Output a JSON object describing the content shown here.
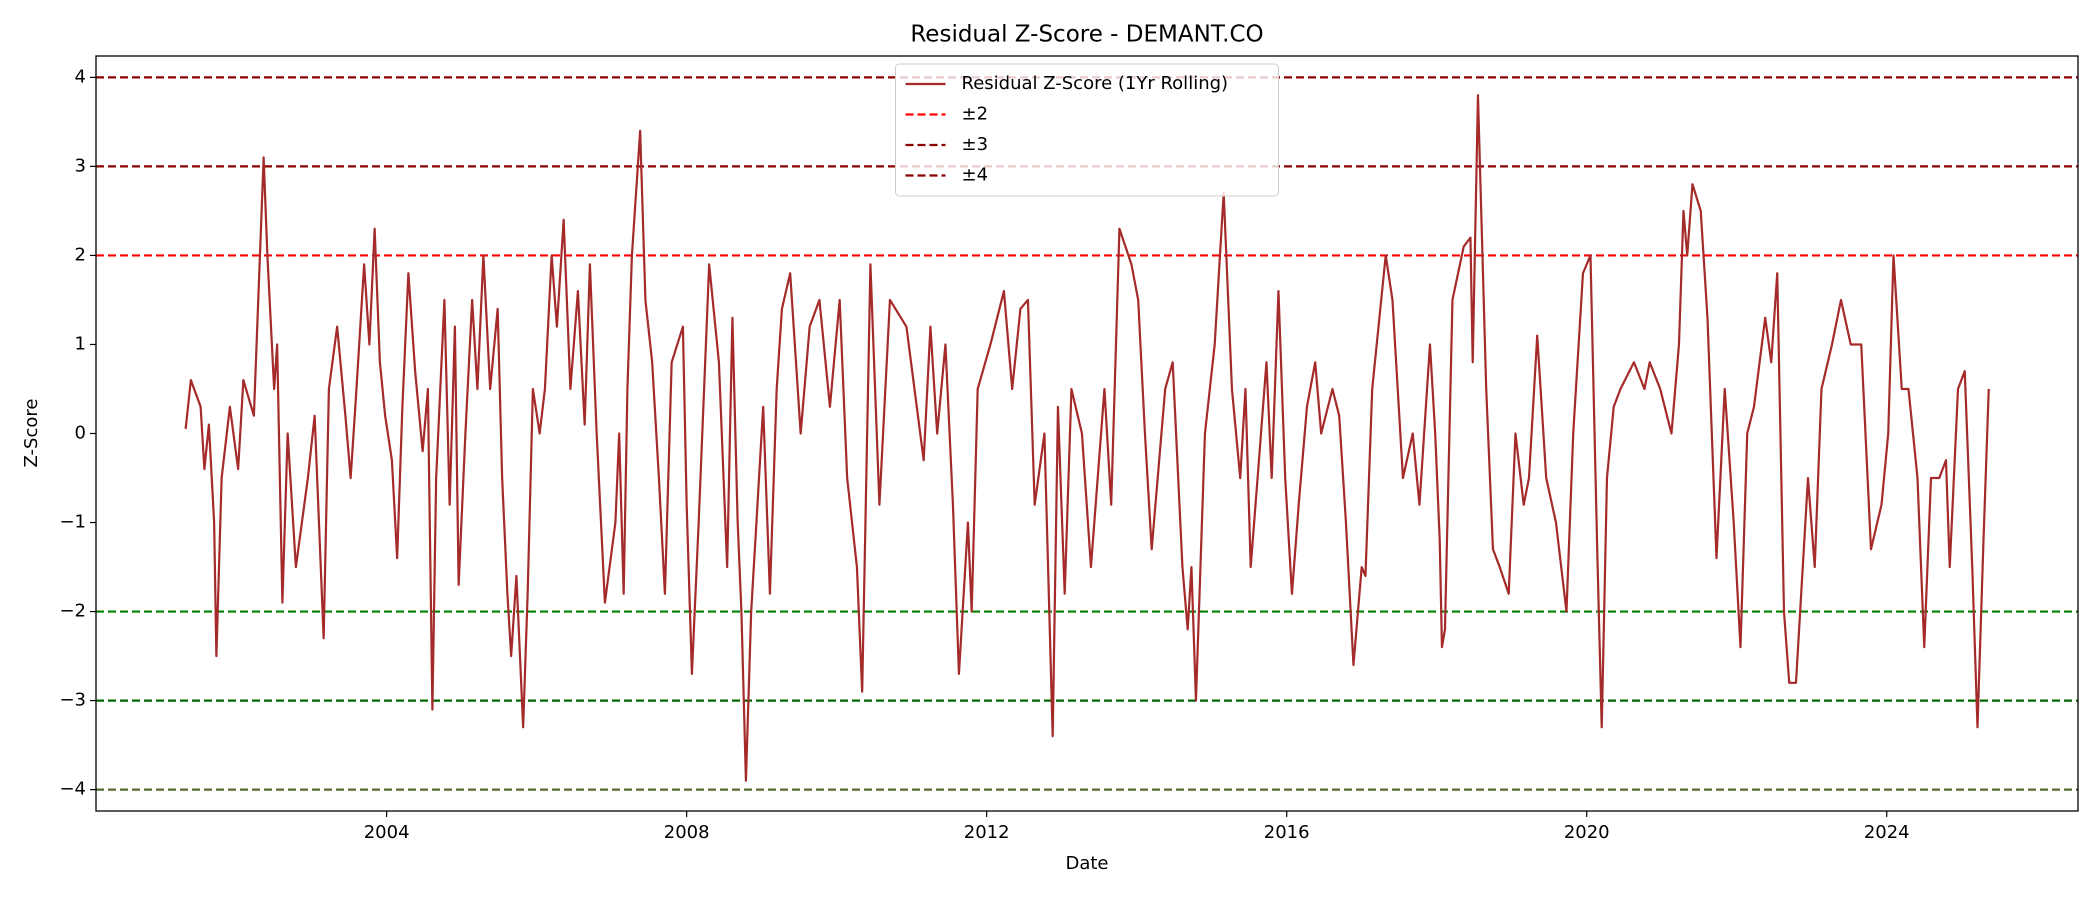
{
  "chart_data": {
    "type": "line",
    "title": "Residual Z-Score - DEMANT.CO",
    "xlabel": "Date",
    "ylabel": "Z-Score",
    "xlim": [
      2000.125,
      2026.55
    ],
    "ylim": [
      -4.24,
      4.24
    ],
    "xticks": [
      2004,
      2008,
      2012,
      2016,
      2020,
      2024
    ],
    "yticks": [
      {
        "value": -4,
        "label": "−4"
      },
      {
        "value": -3,
        "label": "−3"
      },
      {
        "value": -2,
        "label": "−2"
      },
      {
        "value": -1,
        "label": "−1"
      },
      0,
      1,
      2,
      3,
      4
    ],
    "legend": "upper center",
    "x": [
      2001.32,
      2001.39,
      2001.52,
      2001.57,
      2001.63,
      2001.7,
      2001.73,
      2001.8,
      2001.91,
      2002.02,
      2002.09,
      2002.23,
      2002.36,
      2002.41,
      2002.5,
      2002.54,
      2002.61,
      2002.68,
      2002.79,
      2002.95,
      2003.04,
      2003.16,
      2003.23,
      2003.34,
      2003.45,
      2003.52,
      2003.59,
      2003.7,
      2003.77,
      2003.84,
      2003.91,
      2003.98,
      2004.07,
      2004.14,
      2004.21,
      2004.29,
      2004.38,
      2004.48,
      2004.55,
      2004.61,
      2004.66,
      2004.77,
      2004.84,
      2004.91,
      2004.96,
      2005.05,
      2005.14,
      2005.21,
      2005.29,
      2005.38,
      2005.48,
      2005.54,
      2005.61,
      2005.66,
      2005.73,
      2005.82,
      2005.88,
      2005.95,
      2006.04,
      2006.11,
      2006.2,
      2006.27,
      2006.36,
      2006.45,
      2006.55,
      2006.64,
      2006.71,
      2006.8,
      2006.91,
      2007.05,
      2007.1,
      2007.16,
      2007.21,
      2007.27,
      2007.38,
      2007.45,
      2007.54,
      2007.63,
      2007.71,
      2007.8,
      2007.95,
      2008.0,
      2008.07,
      2008.16,
      2008.3,
      2008.43,
      2008.54,
      2008.61,
      2008.68,
      2008.73,
      2008.79,
      2008.86,
      2008.93,
      2009.02,
      2009.11,
      2009.2,
      2009.27,
      2009.38,
      2009.52,
      2009.64,
      2009.77,
      2009.91,
      2010.04,
      2010.14,
      2010.27,
      2010.34,
      2010.45,
      2010.57,
      2010.71,
      2010.93,
      2011.16,
      2011.25,
      2011.34,
      2011.45,
      2011.55,
      2011.63,
      2011.75,
      2011.8,
      2011.88,
      2012.05,
      2012.23,
      2012.34,
      2012.45,
      2012.55,
      2012.64,
      2012.77,
      2012.88,
      2012.95,
      2013.04,
      2013.13,
      2013.27,
      2013.39,
      2013.57,
      2013.66,
      2013.77,
      2013.93,
      2014.02,
      2014.11,
      2014.2,
      2014.38,
      2014.48,
      2014.61,
      2014.68,
      2014.73,
      2014.79,
      2014.91,
      2015.04,
      2015.11,
      2015.16,
      2015.27,
      2015.38,
      2015.45,
      2015.52,
      2015.63,
      2015.73,
      2015.8,
      2015.89,
      2015.98,
      2016.07,
      2016.16,
      2016.27,
      2016.38,
      2016.46,
      2016.61,
      2016.7,
      2016.79,
      2016.89,
      2017.0,
      2017.05,
      2017.14,
      2017.32,
      2017.41,
      2017.55,
      2017.68,
      2017.77,
      2017.91,
      2017.98,
      2018.04,
      2018.07,
      2018.11,
      2018.21,
      2018.36,
      2018.45,
      2018.48,
      2018.55,
      2018.66,
      2018.75,
      2018.84,
      2018.96,
      2019.05,
      2019.16,
      2019.23,
      2019.34,
      2019.46,
      2019.59,
      2019.73,
      2019.82,
      2019.95,
      2020.05,
      2020.14,
      2020.2,
      2020.27,
      2020.36,
      2020.45,
      2020.63,
      2020.77,
      2020.84,
      2020.98,
      2021.13,
      2021.23,
      2021.29,
      2021.34,
      2021.41,
      2021.52,
      2021.61,
      2021.73,
      2021.84,
      2021.96,
      2022.05,
      2022.14,
      2022.23,
      2022.38,
      2022.46,
      2022.54,
      2022.63,
      2022.7,
      2022.79,
      2022.95,
      2023.04,
      2023.13,
      2023.27,
      2023.39,
      2023.52,
      2023.66,
      2023.79,
      2023.93,
      2024.02,
      2024.09,
      2024.2,
      2024.29,
      2024.41,
      2024.5,
      2024.59,
      2024.7,
      2024.79,
      2024.84,
      2024.95,
      2025.04,
      2025.14,
      2025.21,
      2025.29,
      2025.36
    ],
    "series": [
      {
        "name": "Residual Z-Score (1Yr Rolling)",
        "color": "#a52a2a",
        "values": [
          0.05,
          0.6,
          0.3,
          -0.4,
          0.1,
          -1.0,
          -2.5,
          -0.5,
          0.3,
          -0.4,
          0.6,
          0.2,
          3.1,
          2.0,
          0.5,
          1.0,
          -1.9,
          0.0,
          -1.5,
          -0.5,
          0.2,
          -2.3,
          0.5,
          1.2,
          0.2,
          -0.5,
          0.4,
          1.9,
          1.0,
          2.3,
          0.8,
          0.2,
          -0.3,
          -1.4,
          0.3,
          1.8,
          0.7,
          -0.2,
          0.5,
          -3.1,
          -0.5,
          1.5,
          -0.8,
          1.2,
          -1.7,
          0.0,
          1.5,
          0.5,
          2.0,
          0.5,
          1.4,
          -0.5,
          -1.8,
          -2.5,
          -1.6,
          -3.3,
          -1.8,
          0.5,
          0.0,
          0.5,
          2.0,
          1.2,
          2.4,
          0.5,
          1.6,
          0.1,
          1.9,
          0.0,
          -1.9,
          -1.0,
          0.0,
          -1.8,
          0.5,
          2.0,
          3.4,
          1.5,
          0.8,
          -0.5,
          -1.8,
          0.8,
          1.2,
          -0.8,
          -2.7,
          -1.0,
          1.9,
          0.8,
          -1.5,
          1.3,
          -1.0,
          -2.0,
          -3.9,
          -2.0,
          -1.0,
          0.3,
          -1.8,
          0.5,
          1.4,
          1.8,
          0.0,
          1.2,
          1.5,
          0.3,
          1.5,
          -0.5,
          -1.5,
          -2.9,
          1.9,
          -0.8,
          1.5,
          1.2,
          -0.3,
          1.2,
          0.0,
          1.0,
          -0.8,
          -2.7,
          -1.0,
          -2.0,
          0.5,
          1.0,
          1.6,
          0.5,
          1.4,
          1.5,
          -0.8,
          0.0,
          -3.4,
          0.3,
          -1.8,
          0.5,
          0.0,
          -1.5,
          0.5,
          -0.8,
          2.3,
          1.9,
          1.5,
          0.0,
          -1.3,
          0.5,
          0.8,
          -1.5,
          -2.2,
          -1.5,
          -3.0,
          0.0,
          1.0,
          2.0,
          2.7,
          0.5,
          -0.5,
          0.5,
          -1.5,
          -0.3,
          0.8,
          -0.5,
          1.6,
          -0.5,
          -1.8,
          -0.8,
          0.3,
          0.8,
          0.0,
          0.5,
          0.2,
          -1.0,
          -2.6,
          -1.5,
          -1.6,
          0.5,
          2.0,
          1.5,
          -0.5,
          0.0,
          -0.8,
          1.0,
          0.0,
          -1.2,
          -2.4,
          -2.2,
          1.5,
          2.1,
          2.2,
          0.8,
          3.8,
          0.5,
          -1.3,
          -1.5,
          -1.8,
          0.0,
          -0.8,
          -0.5,
          1.1,
          -0.5,
          -1.0,
          -2.0,
          0.0,
          1.8,
          2.0,
          -1.3,
          -3.3,
          -0.5,
          0.3,
          0.5,
          0.8,
          0.5,
          0.8,
          0.5,
          0.0,
          1.0,
          2.5,
          2.0,
          2.8,
          2.5,
          1.3,
          -1.4,
          0.5,
          -1.0,
          -2.4,
          0.0,
          0.3,
          1.3,
          0.8,
          1.8,
          -2.0,
          -2.8,
          -2.8,
          -0.5,
          -1.5,
          0.5,
          1.0,
          1.5,
          1.0,
          1.0,
          -1.3,
          -0.8,
          0.0,
          2.0,
          0.5,
          0.5,
          -0.5,
          -2.4,
          -0.5,
          -0.5,
          -0.3,
          -1.5,
          0.5,
          0.7,
          -1.5,
          -3.3,
          -1.2,
          0.5
        ]
      }
    ],
    "reference_lines": [
      {
        "name": "±2",
        "values": [
          2,
          -2
        ],
        "colors": [
          "#ff0000",
          "#008000"
        ]
      },
      {
        "name": "±3",
        "values": [
          3,
          -3
        ],
        "colors": [
          "#8b0000",
          "#006400"
        ]
      },
      {
        "name": "±4",
        "values": [
          4,
          -4
        ],
        "colors": [
          "#8b0000",
          "#556b2f"
        ]
      }
    ]
  }
}
